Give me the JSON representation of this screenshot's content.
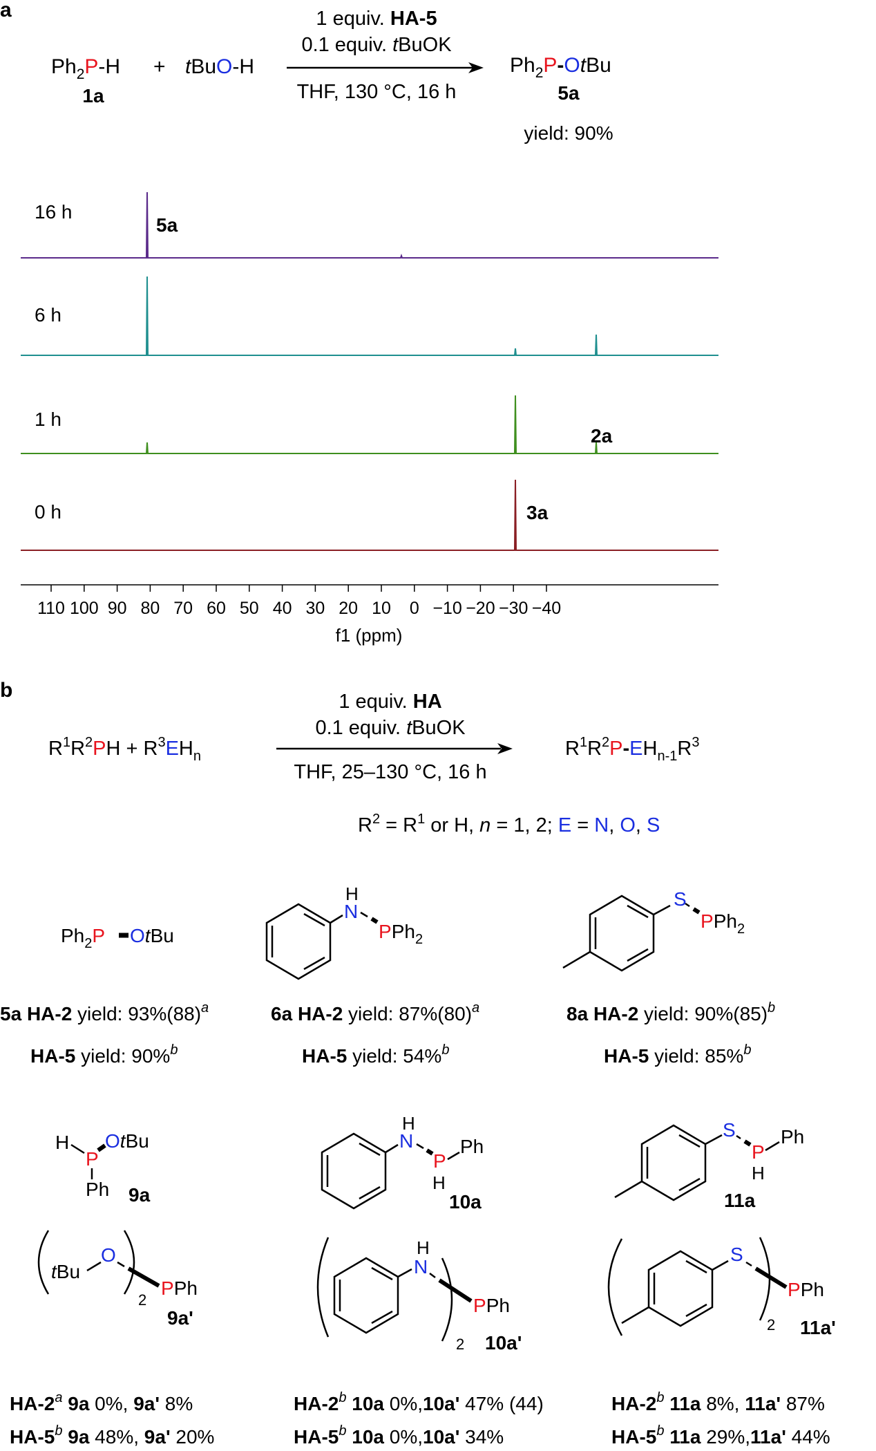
{
  "panel_a": {
    "label": "a",
    "reaction": {
      "reactant1": {
        "pre": "Ph",
        "sub": "2",
        "p": "P",
        "post": "-H",
        "id": "1a"
      },
      "plus": "+",
      "reactant2": {
        "pre": "t",
        "mid": "Bu",
        "o": "O",
        "post": "-H"
      },
      "above1": {
        "text": "1 equiv. ",
        "bold": "HA-5"
      },
      "above2": {
        "text": "0.1 equiv. ",
        "it": "t",
        "rest": "BuOK"
      },
      "below": "THF, 130 °C, 16 h",
      "product": {
        "pre": "Ph",
        "sub": "2",
        "p": "P",
        "dash": "-",
        "o": "O",
        "t": "t",
        "bu": "Bu",
        "id": "5a"
      },
      "yield": "yield: 90%"
    },
    "spectra": {
      "traces": [
        {
          "time": "16 h",
          "color": "#5a2a8a",
          "label": "5a"
        },
        {
          "time": "6 h",
          "color": "#1f8f8f",
          "label": ""
        },
        {
          "time": "1 h",
          "color": "#3f8f1f",
          "label": "2a"
        },
        {
          "time": "0 h",
          "color": "#8a1f24",
          "label": "3a"
        }
      ],
      "axis_ticks": [
        "110",
        "100",
        "90",
        "80",
        "70",
        "60",
        "50",
        "40",
        "30",
        "20",
        "10",
        "0",
        "−10",
        "−20",
        "−30",
        "−40"
      ],
      "axis_label": "f1 (ppm)"
    }
  },
  "panel_b": {
    "label": "b",
    "reaction": {
      "above1": {
        "text": "1 equiv. ",
        "bold": "HA"
      },
      "above2": {
        "text": "0.1 equiv. ",
        "it": "t",
        "rest": "BuOK"
      },
      "below": "THF, 25–130 °C, 16 h",
      "condition": "R² = R¹ or H, n = 1, 2; E = N, O, S"
    },
    "compounds_row1": [
      {
        "id": "5a",
        "line1": {
          "cat": "HA-2",
          "text": " yield: 93%(88)",
          "note": "a"
        },
        "line2": {
          "cat": "HA-5",
          "text": " yield: 90%",
          "note": "b"
        }
      },
      {
        "id": "6a",
        "line1": {
          "cat": "HA-2",
          "text": " yield: 87%(80)",
          "note": "a"
        },
        "line2": {
          "cat": "HA-5",
          "text": " yield: 54%",
          "note": "b"
        }
      },
      {
        "id": "8a",
        "line1": {
          "cat": "HA-2",
          "text": " yield: 90%(85)",
          "note": "b"
        },
        "line2": {
          "cat": "HA-5",
          "text": " yield: 85%",
          "note": "b"
        }
      }
    ],
    "compounds_row2": [
      {
        "id": "9a",
        "dimer": "9a'"
      },
      {
        "id": "10a",
        "dimer": "10a'"
      },
      {
        "id": "11a",
        "dimer": "11a'"
      }
    ],
    "results": [
      {
        "l1": {
          "cat": "HA-2",
          "note": "a",
          "c1": "9a",
          "v1": " 0%, ",
          "c2": "9a'",
          "v2": " 8%"
        },
        "l2": {
          "cat": "HA-5",
          "note": "b",
          "c1": "9a",
          "v1": " 48%, ",
          "c2": "9a'",
          "v2": " 20%"
        }
      },
      {
        "l1": {
          "cat": "HA-2",
          "note": "b",
          "c1": "10a",
          "v1": " 0%,",
          "c2": "10a'",
          "v2": " 47% (44)"
        },
        "l2": {
          "cat": "HA-5",
          "note": "b",
          "c1": "10a",
          "v1": " 0%,",
          "c2": "10a'",
          "v2": " 34%"
        }
      },
      {
        "l1": {
          "cat": "HA-2",
          "note": "b",
          "c1": "11a",
          "v1": " 8%, ",
          "c2": "11a'",
          "v2": " 87%"
        },
        "l2": {
          "cat": "HA-5",
          "note": "b",
          "c1": "11a",
          "v1": " 29%,",
          "c2": "11a'",
          "v2": " 44%"
        }
      }
    ]
  }
}
